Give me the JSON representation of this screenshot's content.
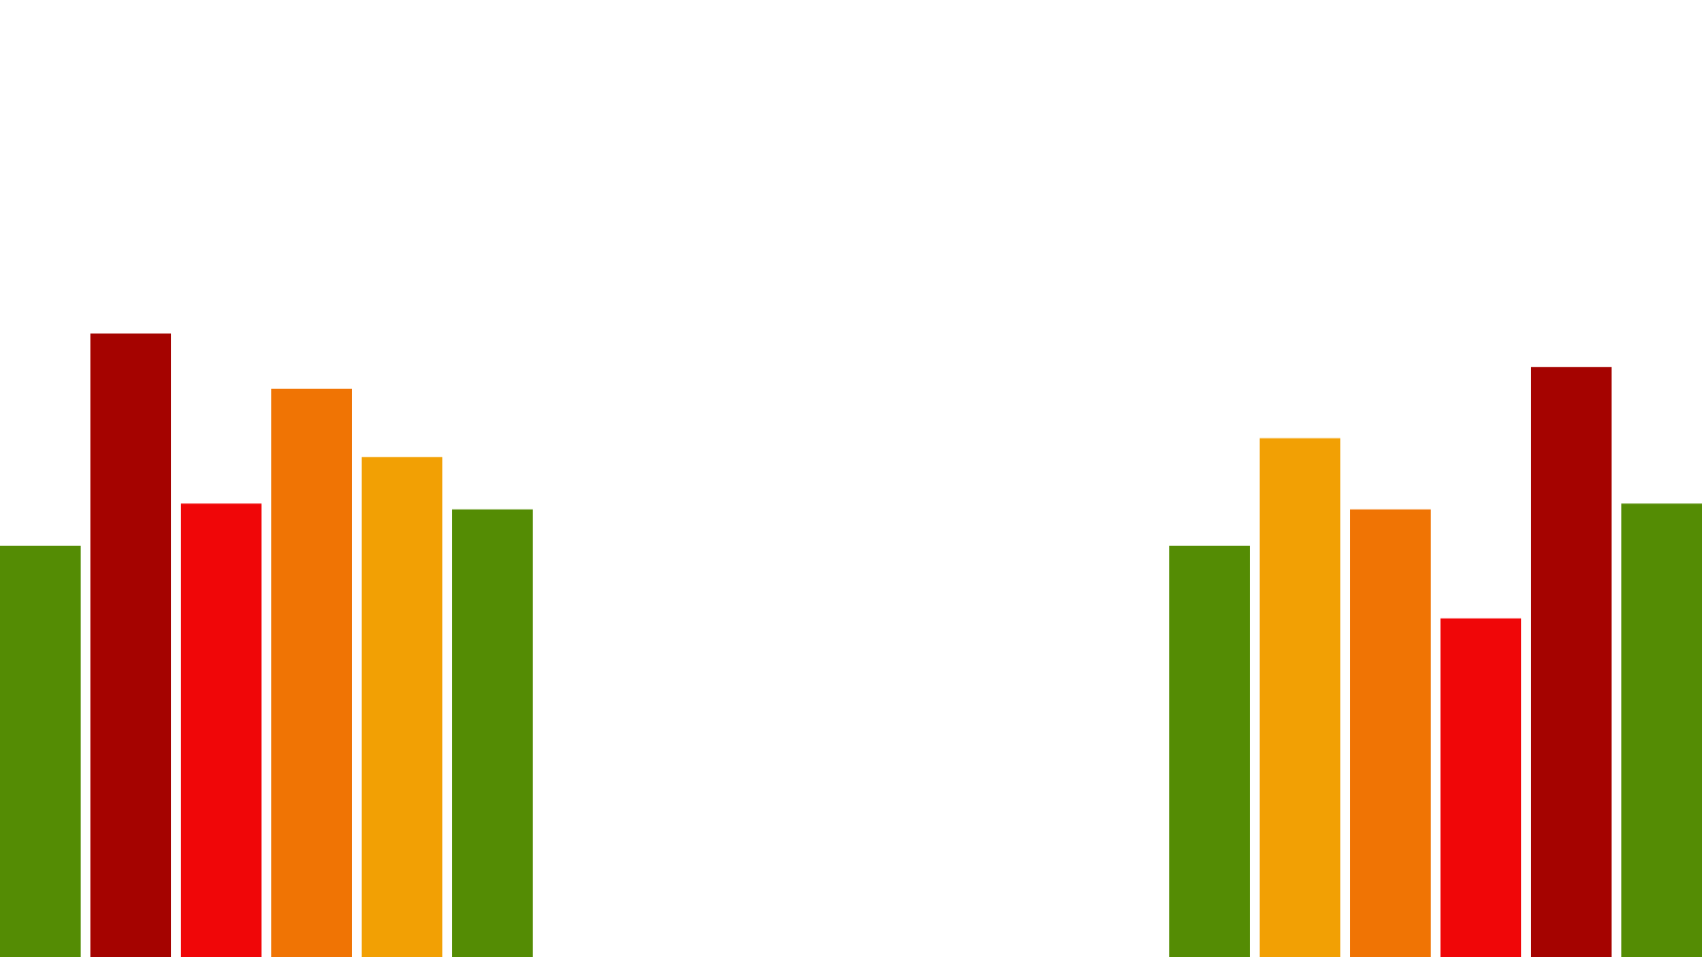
{
  "colors": {
    "green": "#548C04",
    "dark_red": "#A50300",
    "red": "#F00608",
    "orange": "#F07404",
    "amber": "#F2A004",
    "background": "#FFFFFF"
  },
  "chart_data": [
    {
      "type": "bar",
      "title": "",
      "xlabel": "",
      "ylabel": "",
      "ylim": [
        0,
        100
      ],
      "grid": false,
      "legend": "none",
      "values": [
        56.6,
        85.8,
        62.4,
        78.2,
        68.8,
        61.6
      ],
      "colors": [
        "#548C04",
        "#A50300",
        "#F00608",
        "#F07404",
        "#F2A004",
        "#548C04"
      ]
    },
    {
      "type": "bar",
      "title": "",
      "xlabel": "",
      "ylabel": "",
      "ylim": [
        0,
        100
      ],
      "grid": false,
      "legend": "none",
      "values": [
        56.6,
        71.4,
        61.6,
        46.6,
        81.2,
        62.4
      ],
      "colors": [
        "#548C04",
        "#F2A004",
        "#F07404",
        "#F00608",
        "#A50300",
        "#548C04"
      ]
    }
  ]
}
